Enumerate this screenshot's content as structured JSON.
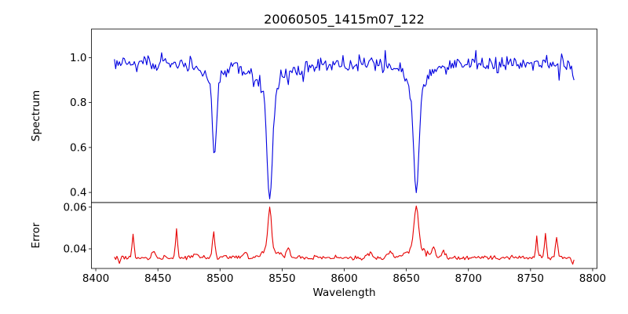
{
  "chart_data": {
    "type": "line",
    "title": "20060505_1415m07_122",
    "xlabel": "Wavelength",
    "xlim": [
      8396.5,
      8803.5
    ],
    "grid": false,
    "legend": "none",
    "seed": 20060505,
    "x_start": 8415,
    "x_step": 1.0,
    "n_points": 371,
    "xticks": [
      {
        "value": 8400,
        "label": "8400"
      },
      {
        "value": 8450,
        "label": "8450"
      },
      {
        "value": 8500,
        "label": "8500"
      },
      {
        "value": 8550,
        "label": "8550"
      },
      {
        "value": 8600,
        "label": "8600"
      },
      {
        "value": 8650,
        "label": "8650"
      },
      {
        "value": 8700,
        "label": "8700"
      },
      {
        "value": 8750,
        "label": "8750"
      },
      {
        "value": 8800,
        "label": "8800"
      }
    ],
    "panels": [
      {
        "name": "spectrum",
        "ylabel": "Spectrum",
        "ylim": [
          0.355,
          1.127
        ],
        "yticks": [
          {
            "value": 1.0,
            "label": "1.0"
          },
          {
            "value": 0.8,
            "label": "0.8"
          },
          {
            "value": 0.6,
            "label": "0.6"
          },
          {
            "value": 0.4,
            "label": "0.4"
          }
        ],
        "color": "#0000e0",
        "continuum": 0.972,
        "noise_sigma": 0.019,
        "absorption_lines": [
          {
            "id": "CaII-8498",
            "center": 8495.5,
            "depth": 0.4,
            "core_width": 1.7,
            "wing_width": 5.0,
            "min_flux": 0.58
          },
          {
            "id": "CaII-8542",
            "center": 8540.0,
            "depth": 0.6,
            "core_width": 2.1,
            "wing_width": 9.0,
            "min_flux": 0.38
          },
          {
            "id": "CaII-8662",
            "center": 8658.0,
            "depth": 0.575,
            "core_width": 2.0,
            "wing_width": 8.0,
            "min_flux": 0.4
          },
          {
            "id": "edge-droop",
            "center": 8787.0,
            "depth": 0.1,
            "core_width": 2.5,
            "wing_width": 3.0,
            "min_flux": 0.88
          }
        ]
      },
      {
        "name": "error",
        "ylabel": "Error",
        "ylim": [
          0.0306,
          0.0622
        ],
        "yticks": [
          {
            "value": 0.06,
            "label": "0.06"
          },
          {
            "value": 0.04,
            "label": "0.04"
          }
        ],
        "color": "#e60000",
        "baseline": 0.0357,
        "noise_sigma": 0.00055,
        "peaks": [
          {
            "center": 8419,
            "height": -0.0026,
            "width": 0.7
          },
          {
            "center": 8430,
            "height": 0.011,
            "width": 0.8
          },
          {
            "center": 8446,
            "height": 0.0035,
            "width": 1.4
          },
          {
            "center": 8465,
            "height": 0.0135,
            "width": 0.8
          },
          {
            "center": 8480,
            "height": 0.002,
            "width": 1.5
          },
          {
            "center": 8495,
            "height": 0.0125,
            "width": 1.0
          },
          {
            "center": 8520,
            "height": 0.0035,
            "width": 1.5
          },
          {
            "center": 8540,
            "height": 0.02,
            "width": 1.4
          },
          {
            "center": 8540,
            "height": 0.004,
            "width": 6.0
          },
          {
            "center": 8555,
            "height": 0.004,
            "width": 1.5
          },
          {
            "center": 8620,
            "height": 0.002,
            "width": 2.0
          },
          {
            "center": 8637,
            "height": 0.003,
            "width": 2.0
          },
          {
            "center": 8658,
            "height": 0.02,
            "width": 1.8
          },
          {
            "center": 8658,
            "height": 0.0045,
            "width": 7.0
          },
          {
            "center": 8672,
            "height": 0.0045,
            "width": 1.5
          },
          {
            "center": 8680,
            "height": 0.003,
            "width": 1.5
          },
          {
            "center": 8755,
            "height": 0.0105,
            "width": 0.7
          },
          {
            "center": 8762,
            "height": 0.0115,
            "width": 0.8
          },
          {
            "center": 8771,
            "height": 0.0095,
            "width": 0.9
          },
          {
            "center": 8784,
            "height": -0.0025,
            "width": 0.8
          }
        ]
      }
    ]
  }
}
